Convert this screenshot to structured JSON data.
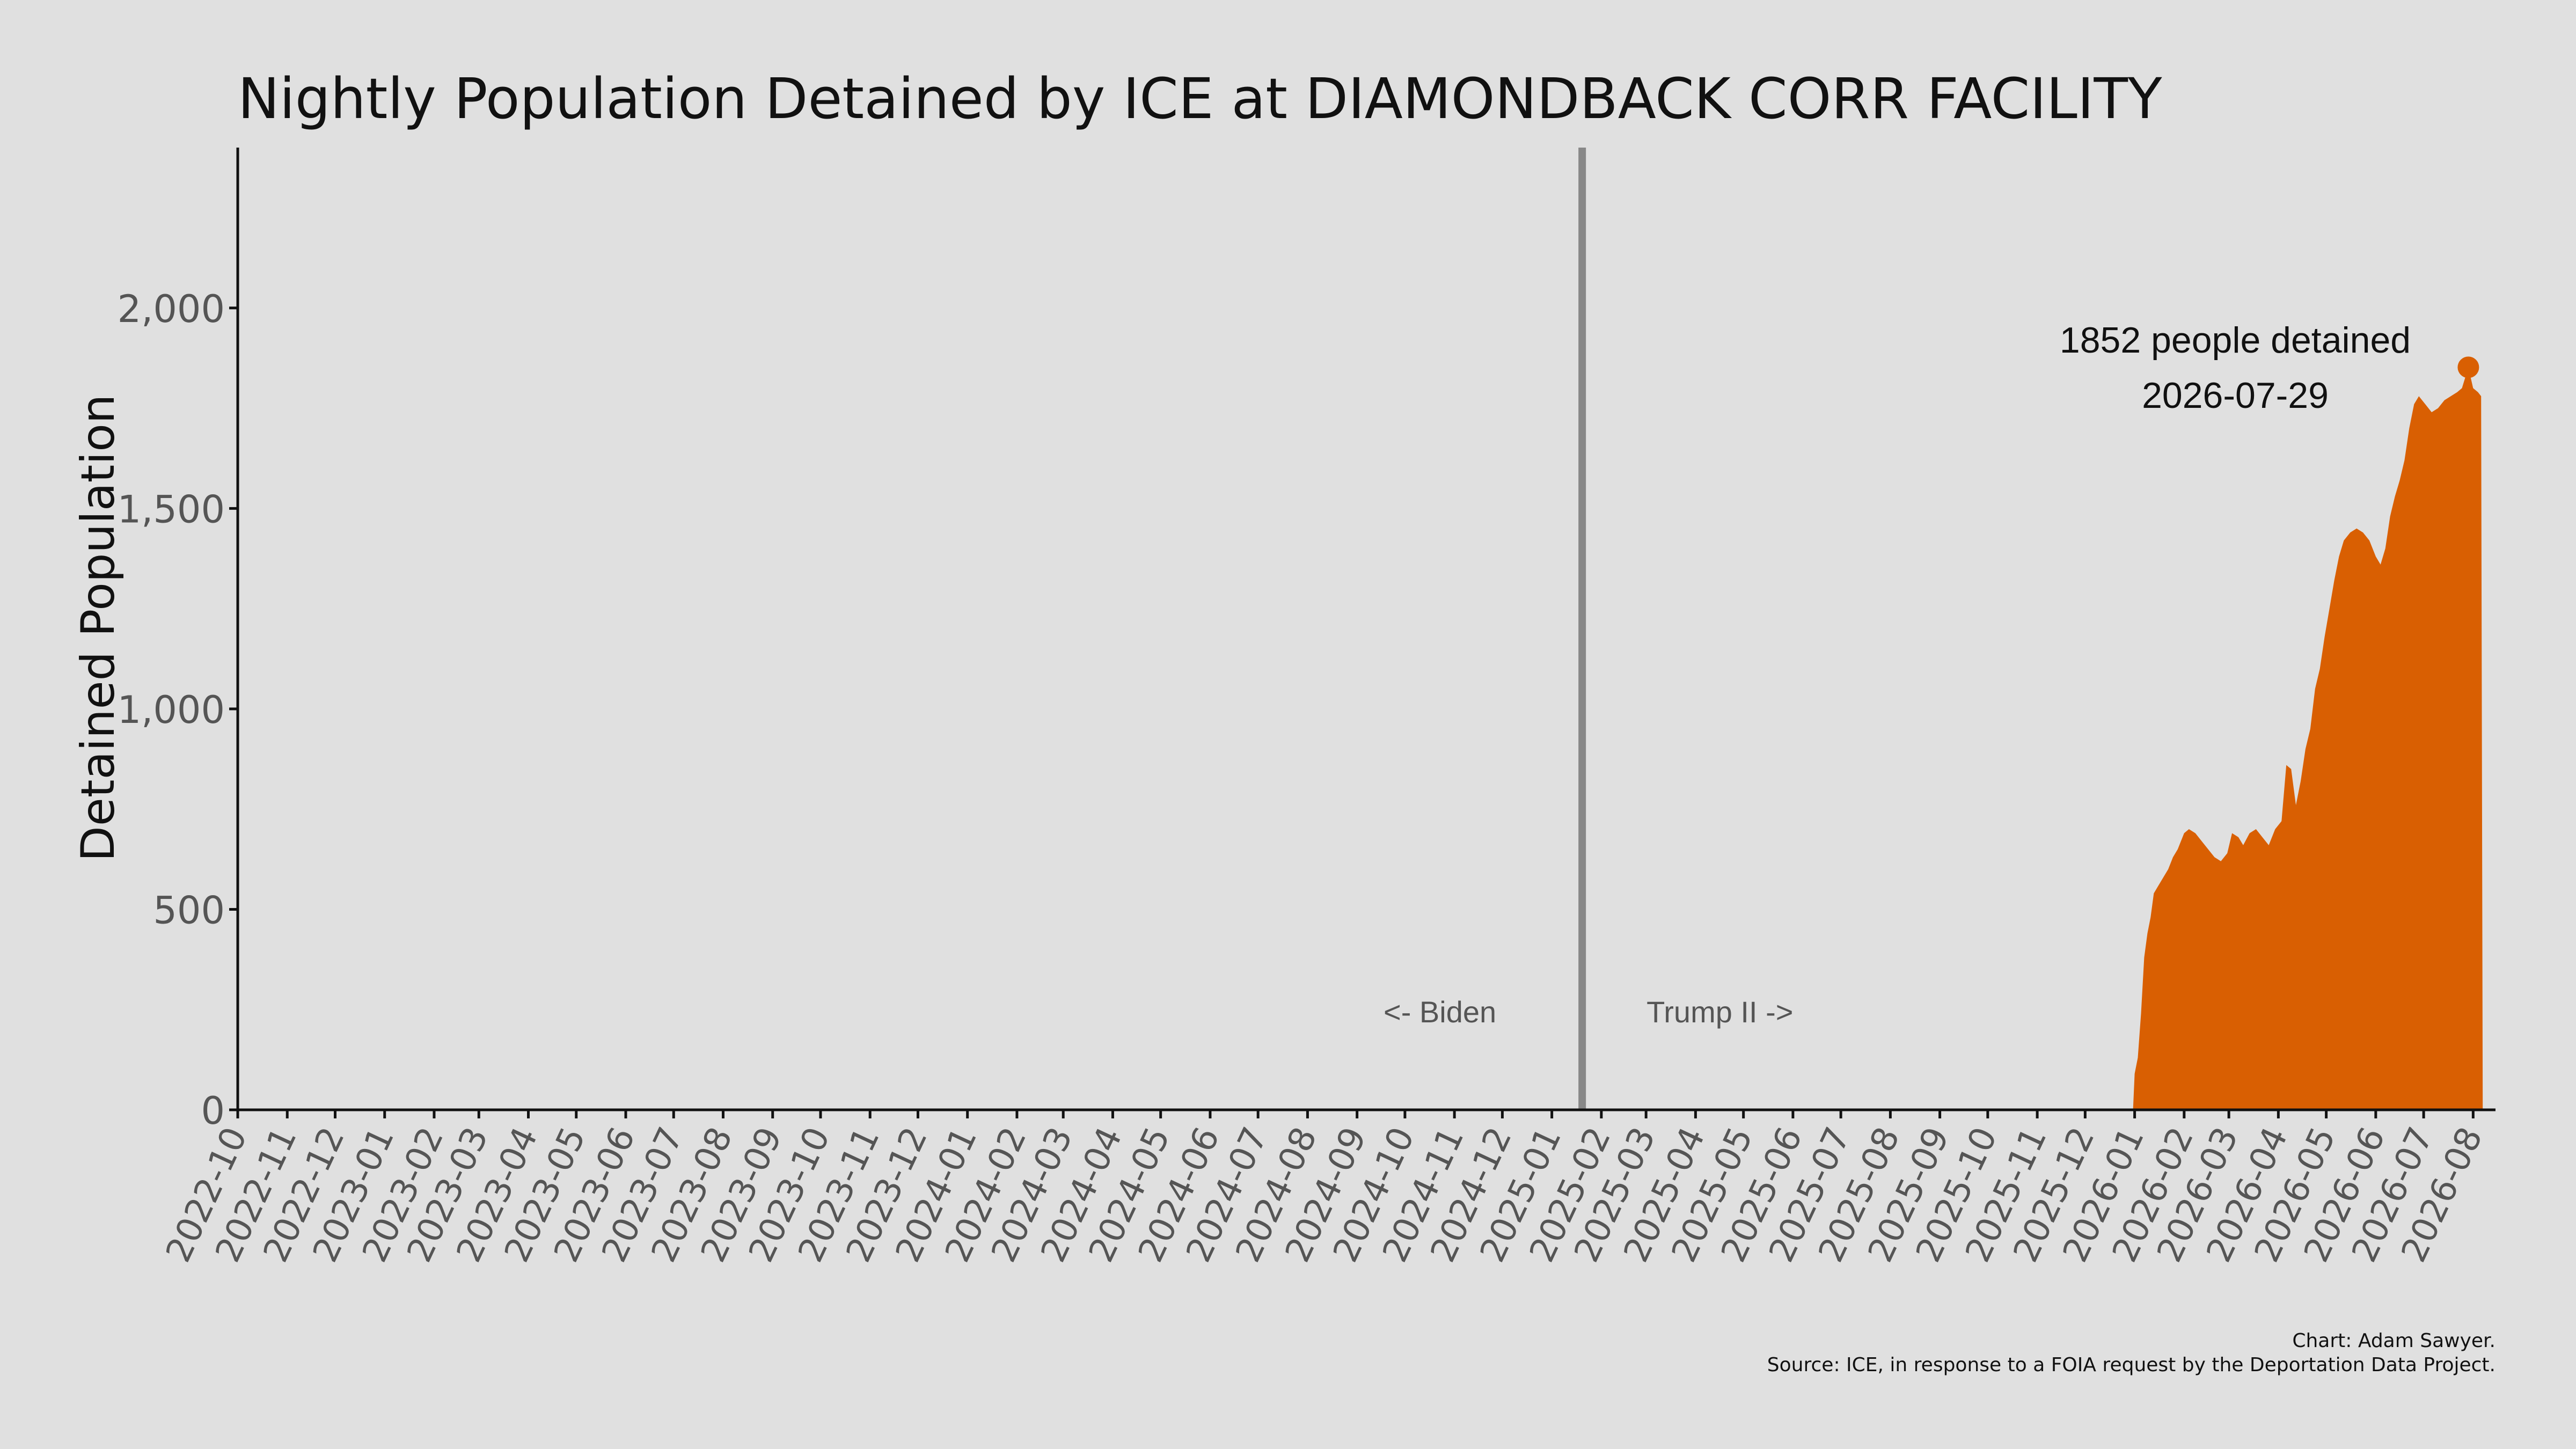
{
  "chart_data": {
    "type": "area",
    "title": "Nightly Population Detained by ICE at DIAMONDBACK CORR FACILITY",
    "xlabel": "",
    "ylabel": "Detained Population",
    "x_range": [
      "2022-10-01",
      "2026-08-15"
    ],
    "ylim": [
      0,
      2400
    ],
    "y_ticks": [
      0,
      500,
      1000,
      1500,
      2000
    ],
    "y_tick_labels": [
      "0",
      "500",
      "1,000",
      "1,500",
      "2,000"
    ],
    "x_ticks": [
      "2022-10",
      "2022-11",
      "2022-12",
      "2023-01",
      "2023-02",
      "2023-03",
      "2023-04",
      "2023-05",
      "2023-06",
      "2023-07",
      "2023-08",
      "2023-09",
      "2023-10",
      "2023-11",
      "2023-12",
      "2024-01",
      "2024-02",
      "2024-03",
      "2024-04",
      "2024-05",
      "2024-06",
      "2024-07",
      "2024-08",
      "2024-09",
      "2024-10",
      "2024-11",
      "2024-12",
      "2025-01",
      "2025-02",
      "2025-03",
      "2025-04",
      "2025-05",
      "2025-06",
      "2025-07",
      "2025-08",
      "2025-09",
      "2025-10",
      "2025-11",
      "2025-12",
      "2026-01",
      "2026-02",
      "2026-03",
      "2026-04",
      "2026-05",
      "2026-06",
      "2026-07",
      "2026-08"
    ],
    "grid": false,
    "legend": "none",
    "series": [
      {
        "color": "#d95f02",
        "points": [
          [
            "2025-12-31",
            0
          ],
          [
            "2026-01-01",
            90
          ],
          [
            "2026-01-03",
            130
          ],
          [
            "2026-01-05",
            240
          ],
          [
            "2026-01-07",
            380
          ],
          [
            "2026-01-09",
            440
          ],
          [
            "2026-01-11",
            480
          ],
          [
            "2026-01-13",
            540
          ],
          [
            "2026-01-16",
            560
          ],
          [
            "2026-01-19",
            580
          ],
          [
            "2026-01-22",
            600
          ],
          [
            "2026-01-25",
            630
          ],
          [
            "2026-01-28",
            650
          ],
          [
            "2026-02-01",
            690
          ],
          [
            "2026-02-04",
            700
          ],
          [
            "2026-02-08",
            690
          ],
          [
            "2026-02-12",
            670
          ],
          [
            "2026-02-16",
            650
          ],
          [
            "2026-02-20",
            630
          ],
          [
            "2026-02-24",
            620
          ],
          [
            "2026-02-28",
            640
          ],
          [
            "2026-03-03",
            690
          ],
          [
            "2026-03-07",
            680
          ],
          [
            "2026-03-10",
            660
          ],
          [
            "2026-03-14",
            690
          ],
          [
            "2026-03-18",
            700
          ],
          [
            "2026-03-22",
            680
          ],
          [
            "2026-03-26",
            660
          ],
          [
            "2026-03-30",
            700
          ],
          [
            "2026-04-03",
            720
          ],
          [
            "2026-04-06",
            860
          ],
          [
            "2026-04-09",
            850
          ],
          [
            "2026-04-12",
            760
          ],
          [
            "2026-04-15",
            820
          ],
          [
            "2026-04-18",
            900
          ],
          [
            "2026-04-21",
            950
          ],
          [
            "2026-04-24",
            1050
          ],
          [
            "2026-04-27",
            1100
          ],
          [
            "2026-04-30",
            1180
          ],
          [
            "2026-05-03",
            1250
          ],
          [
            "2026-05-06",
            1320
          ],
          [
            "2026-05-09",
            1380
          ],
          [
            "2026-05-12",
            1420
          ],
          [
            "2026-05-16",
            1440
          ],
          [
            "2026-05-20",
            1450
          ],
          [
            "2026-05-24",
            1440
          ],
          [
            "2026-05-28",
            1420
          ],
          [
            "2026-06-01",
            1380
          ],
          [
            "2026-06-04",
            1360
          ],
          [
            "2026-06-07",
            1400
          ],
          [
            "2026-06-10",
            1480
          ],
          [
            "2026-06-13",
            1530
          ],
          [
            "2026-06-16",
            1570
          ],
          [
            "2026-06-19",
            1620
          ],
          [
            "2026-06-22",
            1700
          ],
          [
            "2026-06-25",
            1760
          ],
          [
            "2026-06-28",
            1780
          ],
          [
            "2026-07-02",
            1760
          ],
          [
            "2026-07-06",
            1740
          ],
          [
            "2026-07-10",
            1750
          ],
          [
            "2026-07-14",
            1770
          ],
          [
            "2026-07-18",
            1780
          ],
          [
            "2026-07-22",
            1790
          ],
          [
            "2026-07-25",
            1800
          ],
          [
            "2026-07-29",
            1852
          ],
          [
            "2026-08-01",
            1800
          ],
          [
            "2026-08-04",
            1790
          ],
          [
            "2026-08-06",
            1780
          ],
          [
            "2026-08-07",
            0
          ]
        ]
      }
    ],
    "divider": {
      "date": "2025-01-20",
      "color": "#888888"
    },
    "annotations": {
      "left_label": "<- Biden",
      "right_label": "Trump II ->",
      "peak_label": "1852 people detained",
      "peak_date_label": "2026-07-29",
      "peak_x": "2026-07-29",
      "peak_y": 1852
    }
  },
  "caption": {
    "line1": "Chart: Adam Sawyer.",
    "line2": "Source: ICE, in response to a FOIA request by the Deportation Data Project."
  },
  "colors": {
    "background": "#e0e0e0",
    "area": "#d95f02",
    "axis": "#111111",
    "divider": "#888888",
    "label_text": "#555555"
  }
}
